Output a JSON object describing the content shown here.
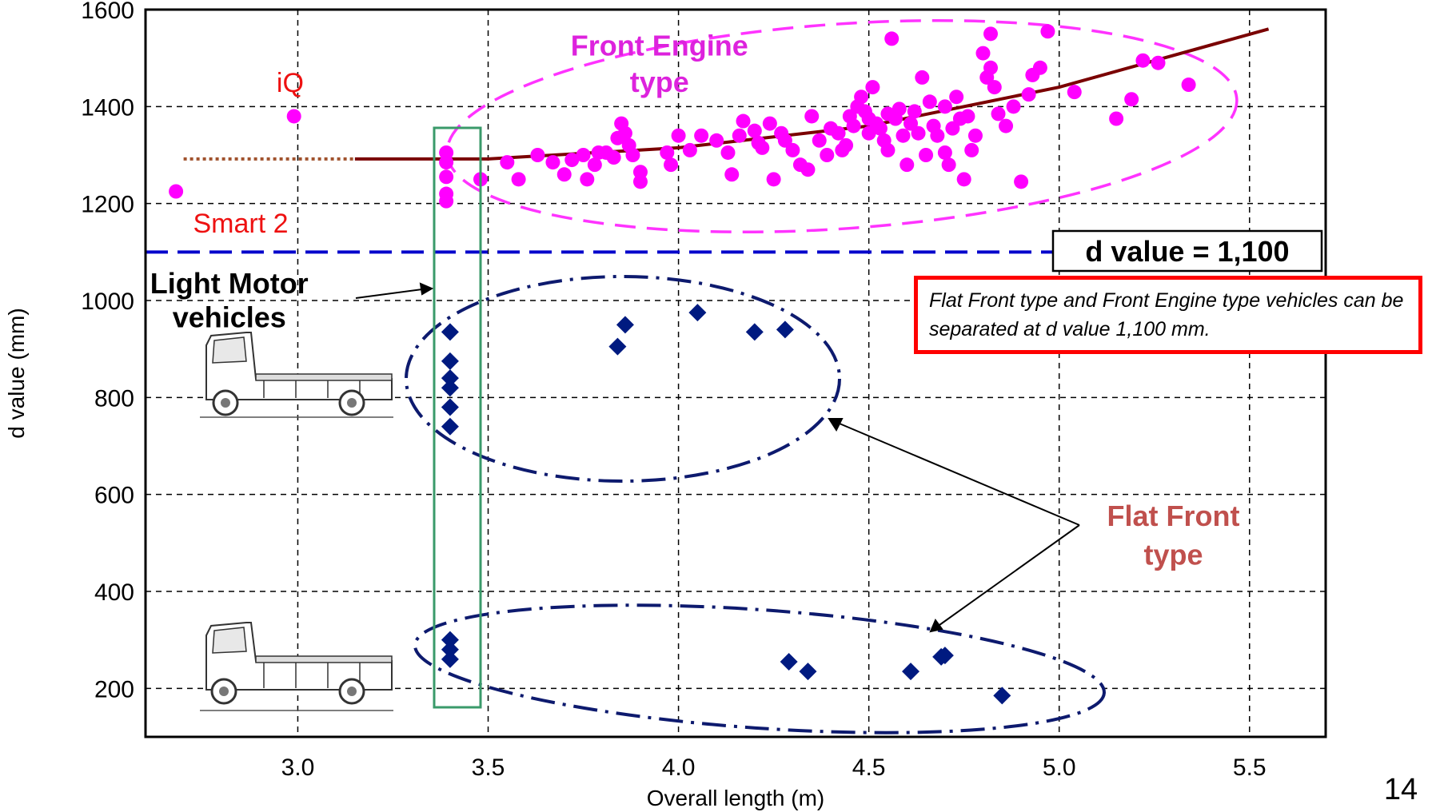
{
  "chart_data": {
    "type": "scatter",
    "xlabel": "Overall length (m)",
    "ylabel": "d value (mm)",
    "xlim": [
      2.6,
      5.7
    ],
    "ylim": [
      100,
      1600
    ],
    "x_ticks": [
      "3.0",
      "3.5",
      "4.0",
      "4.5",
      "5.0",
      "5.5"
    ],
    "y_ticks": [
      "200",
      "400",
      "600",
      "800",
      "1000",
      "1200",
      "1400",
      "1600"
    ],
    "grid": true,
    "threshold": {
      "y": 1100,
      "label": "d value = 1,100",
      "color": "#0000cc"
    },
    "series": [
      {
        "marker": "circle",
        "color": "#ff00ff",
        "points": [
          [
            2.68,
            1225
          ],
          [
            2.99,
            1380
          ],
          [
            3.39,
            1305
          ],
          [
            3.39,
            1285
          ],
          [
            3.39,
            1255
          ],
          [
            3.39,
            1220
          ],
          [
            3.39,
            1205
          ],
          [
            3.48,
            1250
          ],
          [
            3.55,
            1285
          ],
          [
            3.58,
            1250
          ],
          [
            3.63,
            1300
          ],
          [
            3.67,
            1285
          ],
          [
            3.7,
            1260
          ],
          [
            3.72,
            1290
          ],
          [
            3.75,
            1300
          ],
          [
            3.76,
            1250
          ],
          [
            3.78,
            1280
          ],
          [
            3.79,
            1305
          ],
          [
            3.81,
            1305
          ],
          [
            3.83,
            1295
          ],
          [
            3.84,
            1335
          ],
          [
            3.85,
            1365
          ],
          [
            3.86,
            1345
          ],
          [
            3.87,
            1320
          ],
          [
            3.88,
            1300
          ],
          [
            3.9,
            1265
          ],
          [
            3.9,
            1245
          ],
          [
            3.97,
            1305
          ],
          [
            3.98,
            1280
          ],
          [
            4.0,
            1340
          ],
          [
            4.03,
            1310
          ],
          [
            4.06,
            1340
          ],
          [
            4.1,
            1330
          ],
          [
            4.13,
            1305
          ],
          [
            4.14,
            1260
          ],
          [
            4.16,
            1340
          ],
          [
            4.17,
            1370
          ],
          [
            4.2,
            1350
          ],
          [
            4.21,
            1325
          ],
          [
            4.22,
            1315
          ],
          [
            4.24,
            1365
          ],
          [
            4.25,
            1250
          ],
          [
            4.27,
            1345
          ],
          [
            4.28,
            1330
          ],
          [
            4.3,
            1310
          ],
          [
            4.32,
            1280
          ],
          [
            4.34,
            1270
          ],
          [
            4.35,
            1380
          ],
          [
            4.37,
            1330
          ],
          [
            4.39,
            1300
          ],
          [
            4.4,
            1355
          ],
          [
            4.42,
            1345
          ],
          [
            4.43,
            1310
          ],
          [
            4.44,
            1320
          ],
          [
            4.45,
            1380
          ],
          [
            4.46,
            1360
          ],
          [
            4.47,
            1400
          ],
          [
            4.48,
            1420
          ],
          [
            4.49,
            1390
          ],
          [
            4.5,
            1375
          ],
          [
            4.5,
            1345
          ],
          [
            4.51,
            1440
          ],
          [
            4.52,
            1365
          ],
          [
            4.53,
            1355
          ],
          [
            4.54,
            1330
          ],
          [
            4.55,
            1385
          ],
          [
            4.55,
            1310
          ],
          [
            4.56,
            1540
          ],
          [
            4.57,
            1375
          ],
          [
            4.58,
            1395
          ],
          [
            4.59,
            1340
          ],
          [
            4.6,
            1280
          ],
          [
            4.61,
            1365
          ],
          [
            4.62,
            1390
          ],
          [
            4.63,
            1345
          ],
          [
            4.64,
            1460
          ],
          [
            4.65,
            1300
          ],
          [
            4.66,
            1410
          ],
          [
            4.67,
            1360
          ],
          [
            4.68,
            1340
          ],
          [
            4.7,
            1305
          ],
          [
            4.7,
            1400
          ],
          [
            4.71,
            1280
          ],
          [
            4.72,
            1355
          ],
          [
            4.73,
            1420
          ],
          [
            4.74,
            1375
          ],
          [
            4.75,
            1250
          ],
          [
            4.76,
            1380
          ],
          [
            4.77,
            1310
          ],
          [
            4.78,
            1340
          ],
          [
            4.8,
            1510
          ],
          [
            4.81,
            1460
          ],
          [
            4.82,
            1480
          ],
          [
            4.82,
            1550
          ],
          [
            4.83,
            1440
          ],
          [
            4.84,
            1385
          ],
          [
            4.86,
            1360
          ],
          [
            4.88,
            1400
          ],
          [
            4.9,
            1245
          ],
          [
            4.92,
            1425
          ],
          [
            4.93,
            1465
          ],
          [
            4.95,
            1480
          ],
          [
            4.97,
            1555
          ],
          [
            5.04,
            1430
          ],
          [
            5.15,
            1375
          ],
          [
            5.19,
            1415
          ],
          [
            5.22,
            1495
          ],
          [
            5.26,
            1490
          ],
          [
            5.34,
            1445
          ]
        ]
      },
      {
        "marker": "diamond",
        "color": "#001a80",
        "points": [
          [
            3.4,
            935
          ],
          [
            3.4,
            875
          ],
          [
            3.4,
            840
          ],
          [
            3.4,
            820
          ],
          [
            3.4,
            780
          ],
          [
            3.4,
            740
          ],
          [
            3.84,
            905
          ],
          [
            3.86,
            950
          ],
          [
            4.05,
            975
          ],
          [
            4.2,
            935
          ],
          [
            4.28,
            940
          ],
          [
            3.4,
            300
          ],
          [
            3.4,
            280
          ],
          [
            3.4,
            260
          ],
          [
            4.29,
            255
          ],
          [
            4.34,
            235
          ],
          [
            4.61,
            235
          ],
          [
            4.69,
            265
          ],
          [
            4.7,
            268
          ],
          [
            4.85,
            185
          ]
        ]
      }
    ],
    "trend_line": {
      "color": "#7a0000",
      "points": [
        [
          3.15,
          1292
        ],
        [
          3.5,
          1292
        ],
        [
          4.0,
          1315
        ],
        [
          4.5,
          1360
        ],
        [
          5.0,
          1440
        ],
        [
          5.55,
          1560
        ]
      ],
      "dotted_extension": [
        [
          2.7,
          1292
        ],
        [
          3.15,
          1292
        ]
      ]
    },
    "annotations": [
      {
        "text": "iQ",
        "x": 2.98,
        "y": 1430,
        "style": "red"
      },
      {
        "text": "Smart 2",
        "x": 2.85,
        "y": 1140,
        "style": "red"
      },
      {
        "text": "Front Engine",
        "x": 3.95,
        "y": 1505,
        "style": "magenta"
      },
      {
        "text": "type",
        "x": 3.95,
        "y": 1430,
        "style": "magenta"
      },
      {
        "text": "Light Motor",
        "x": 2.82,
        "y": 1015,
        "style": "black"
      },
      {
        "text": "vehicles",
        "x": 2.82,
        "y": 945,
        "style": "black"
      },
      {
        "text": "Flat Front",
        "x": 5.3,
        "y": 535,
        "style": "brown"
      },
      {
        "text": "type",
        "x": 5.3,
        "y": 455,
        "style": "brown"
      }
    ]
  },
  "note": "Flat Front type and Front Engine  type vehicles can be separated at d value 1,100 mm.",
  "page_number": "14",
  "colors": {
    "front_engine": "#ff00ff",
    "flat_front": "#001a80",
    "threshold": "#0000cc",
    "trend": "#7a0000",
    "box": "#3a9a6a",
    "note_border": "#ff0000"
  },
  "icons": [
    "kei-truck-icon-upper",
    "kei-truck-icon-lower"
  ]
}
